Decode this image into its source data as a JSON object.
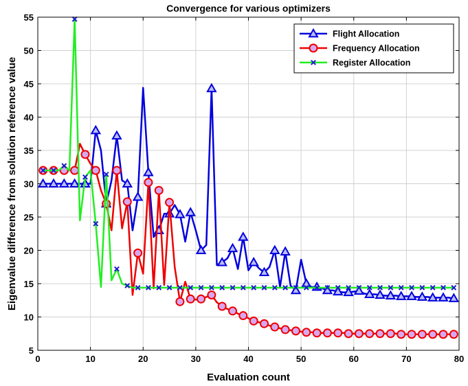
{
  "chart_data": {
    "type": "line",
    "title": "Convergence for various optimizers",
    "xlabel": "Evaluation count",
    "ylabel": "Eigenvalue difference from solution reference value",
    "xlim": [
      0,
      80
    ],
    "ylim": [
      5,
      55
    ],
    "xticks": [
      "0",
      "10",
      "20",
      "30",
      "40",
      "50",
      "60",
      "70",
      "80"
    ],
    "yticks": [
      "5",
      "10",
      "15",
      "20",
      "25",
      "30",
      "35",
      "40",
      "45",
      "50",
      "55"
    ],
    "grid": true,
    "legend_position": "top-right",
    "series": [
      {
        "name": "Flight Allocation",
        "color": "#0000dd",
        "marker": "triangle",
        "marker_face": "#bdbdf5",
        "x": [
          1,
          2,
          3,
          4,
          5,
          6,
          7,
          8,
          9,
          10,
          11,
          12,
          13,
          14,
          15,
          16,
          17,
          18,
          19,
          20,
          21,
          22,
          23,
          24,
          25,
          26,
          27,
          28,
          29,
          30,
          31,
          32,
          33,
          34,
          35,
          36,
          37,
          38,
          39,
          40,
          41,
          42,
          43,
          44,
          45,
          46,
          47,
          48,
          49,
          50,
          51,
          52,
          53,
          54,
          55,
          56,
          57,
          58,
          59,
          60,
          61,
          62,
          63,
          64,
          65,
          66,
          67,
          68,
          69,
          70,
          71,
          72,
          73,
          74,
          75,
          76,
          77,
          78,
          79
        ],
        "y": [
          30,
          30,
          30,
          30,
          30,
          30,
          30,
          30,
          30,
          30,
          38,
          35,
          27,
          30.5,
          37.2,
          30.5,
          30,
          23,
          28,
          44.4,
          31.7,
          22,
          23,
          25.5,
          25.5,
          26.8,
          25.4,
          21.3,
          25.7,
          23,
          20,
          20.8,
          44.3,
          17.8,
          18.2,
          18.8,
          20.3,
          17.2,
          22,
          17,
          18.2,
          17.3,
          16.7,
          17.5,
          20,
          14.5,
          19.8,
          14.7,
          14,
          18.6,
          15,
          14.5,
          14.5,
          14.3,
          14,
          14,
          13.8,
          13.7,
          13.7,
          13.8,
          13.9,
          13.5,
          13.4,
          13.4,
          13.3,
          13.2,
          13.2,
          13.2,
          13.1,
          13.1,
          13.1,
          13,
          13,
          13,
          12.9,
          12.9,
          12.9,
          12.9,
          12.8
        ],
        "marker_x": [
          1,
          3,
          5,
          7,
          9,
          11,
          13,
          15,
          17,
          19,
          21,
          23,
          25,
          27,
          29,
          31,
          33,
          35,
          37,
          39,
          41,
          43,
          45,
          47,
          49,
          51,
          53,
          55,
          57,
          59,
          61,
          63,
          65,
          67,
          69,
          71,
          73,
          75,
          77,
          79
        ]
      },
      {
        "name": "Frequency Allocation",
        "color": "#ee0000",
        "marker": "circle",
        "marker_face": "#d6a8f0",
        "x": [
          1,
          2,
          3,
          4,
          5,
          6,
          7,
          8,
          9,
          10,
          11,
          12,
          13,
          14,
          15,
          16,
          17,
          18,
          19,
          20,
          21,
          22,
          23,
          24,
          25,
          26,
          27,
          28,
          29,
          30,
          31,
          32,
          33,
          34,
          35,
          36,
          37,
          38,
          39,
          40,
          41,
          42,
          43,
          44,
          45,
          46,
          47,
          48,
          49,
          50,
          51,
          52,
          53,
          54,
          55,
          56,
          57,
          58,
          59,
          60,
          61,
          62,
          63,
          64,
          65,
          66,
          67,
          68,
          69,
          70,
          71,
          72,
          73,
          74,
          75,
          76,
          77,
          78,
          79
        ],
        "y": [
          32,
          32,
          32,
          32,
          32,
          32,
          32,
          36,
          34.4,
          33,
          32,
          29,
          27,
          23,
          32,
          23.3,
          27.3,
          13.3,
          19.6,
          16.5,
          30.2,
          14.3,
          29,
          14.8,
          27.2,
          17.5,
          12.3,
          15.3,
          12.7,
          12.6,
          12.7,
          13,
          13.3,
          12.2,
          11.6,
          11.2,
          10.9,
          10.5,
          10.2,
          9.8,
          9.4,
          9.2,
          9,
          8.7,
          8.5,
          8.3,
          8.1,
          8,
          7.9,
          7.8,
          7.7,
          7.7,
          7.6,
          7.6,
          7.6,
          7.6,
          7.6,
          7.6,
          7.5,
          7.5,
          7.5,
          7.5,
          7.5,
          7.5,
          7.5,
          7.5,
          7.5,
          7.5,
          7.4,
          7.4,
          7.4,
          7.4,
          7.4,
          7.4,
          7.4,
          7.4,
          7.4,
          7.4,
          7.4
        ],
        "marker_x": [
          1,
          3,
          5,
          7,
          9,
          11,
          13,
          15,
          17,
          19,
          21,
          23,
          25,
          27,
          29,
          31,
          33,
          35,
          37,
          39,
          41,
          43,
          45,
          47,
          49,
          51,
          53,
          55,
          57,
          59,
          61,
          63,
          65,
          67,
          69,
          71,
          73,
          75,
          77,
          79
        ]
      },
      {
        "name": "Register Allocation",
        "color": "#22ee22",
        "marker": "x",
        "marker_face": "#1a1ad0",
        "x": [
          1,
          2,
          3,
          4,
          5,
          6,
          7,
          8,
          9,
          10,
          11,
          12,
          13,
          14,
          15,
          16,
          17,
          18,
          19,
          20,
          21,
          22,
          23,
          24,
          25,
          26,
          27,
          28,
          29,
          30,
          31,
          32,
          33,
          34,
          35,
          36,
          37,
          38,
          39,
          40,
          41,
          42,
          43,
          44,
          45,
          46,
          47,
          48,
          49,
          50,
          51,
          52,
          53,
          54,
          55,
          56,
          57,
          58,
          59,
          60,
          61,
          62,
          63,
          64,
          65,
          66,
          67,
          68,
          69,
          70,
          71,
          72,
          73,
          74,
          75,
          76,
          77,
          78,
          79
        ],
        "y": [
          32,
          32,
          32,
          32,
          32.7,
          32,
          54.7,
          24.5,
          31,
          32,
          24,
          14.5,
          31.4,
          15.5,
          17.2,
          15,
          14.7,
          14.4,
          14.4,
          14.4,
          14.4,
          14.4,
          14.4,
          14.4,
          14.4,
          14.4,
          14.4,
          14.4,
          14.4,
          14.4,
          14.4,
          14.4,
          14.4,
          14.4,
          14.4,
          14.4,
          14.4,
          14.4,
          14.4,
          14.4,
          14.4,
          14.4,
          14.4,
          14.4,
          14.4,
          14.4,
          14.4,
          14.4,
          14.4,
          14.4,
          14.4,
          14.4,
          14.4,
          14.4,
          14.4,
          14.4,
          14.4,
          14.4,
          14.4,
          14.4,
          14.4,
          14.4,
          14.4,
          14.4,
          14.4,
          14.4,
          14.4,
          14.4,
          14.4,
          14.4,
          14.4,
          14.4,
          14.4,
          14.4,
          14.4,
          14.4,
          14.4,
          14.4,
          14.4
        ],
        "marker_x": [
          1,
          3,
          5,
          7,
          9,
          11,
          13,
          15,
          17,
          19,
          21,
          23,
          25,
          27,
          29,
          31,
          33,
          35,
          37,
          39,
          41,
          43,
          45,
          47,
          49,
          51,
          53,
          55,
          57,
          59,
          61,
          63,
          65,
          67,
          69,
          71,
          73,
          75,
          77,
          79
        ]
      }
    ]
  }
}
